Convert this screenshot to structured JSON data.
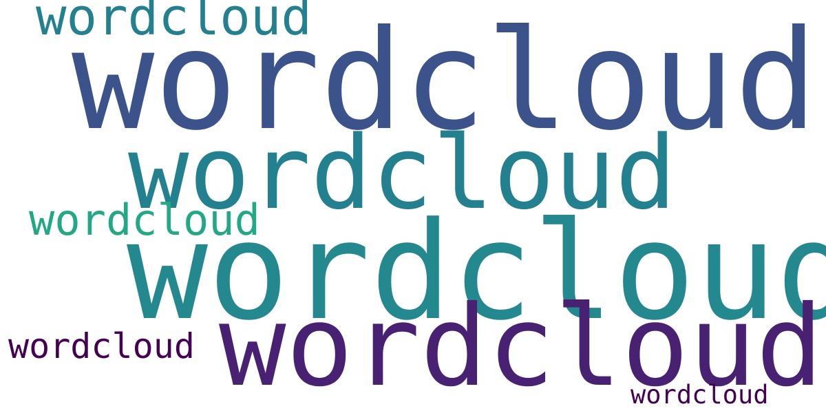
{
  "words": [
    {
      "text": "wordcloud",
      "color": "#23808e"
    },
    {
      "text": "wordcloud",
      "color": "#3b528b"
    },
    {
      "text": "wordcloud",
      "color": "#23808e"
    },
    {
      "text": "wordcloud",
      "color": "#22a884"
    },
    {
      "text": "wordcloud",
      "color": "#23898e"
    },
    {
      "text": "wordcloud",
      "color": "#440154"
    },
    {
      "text": "wordcloud",
      "color": "#482173"
    },
    {
      "text": "wordcloud",
      "color": "#440154"
    }
  ]
}
